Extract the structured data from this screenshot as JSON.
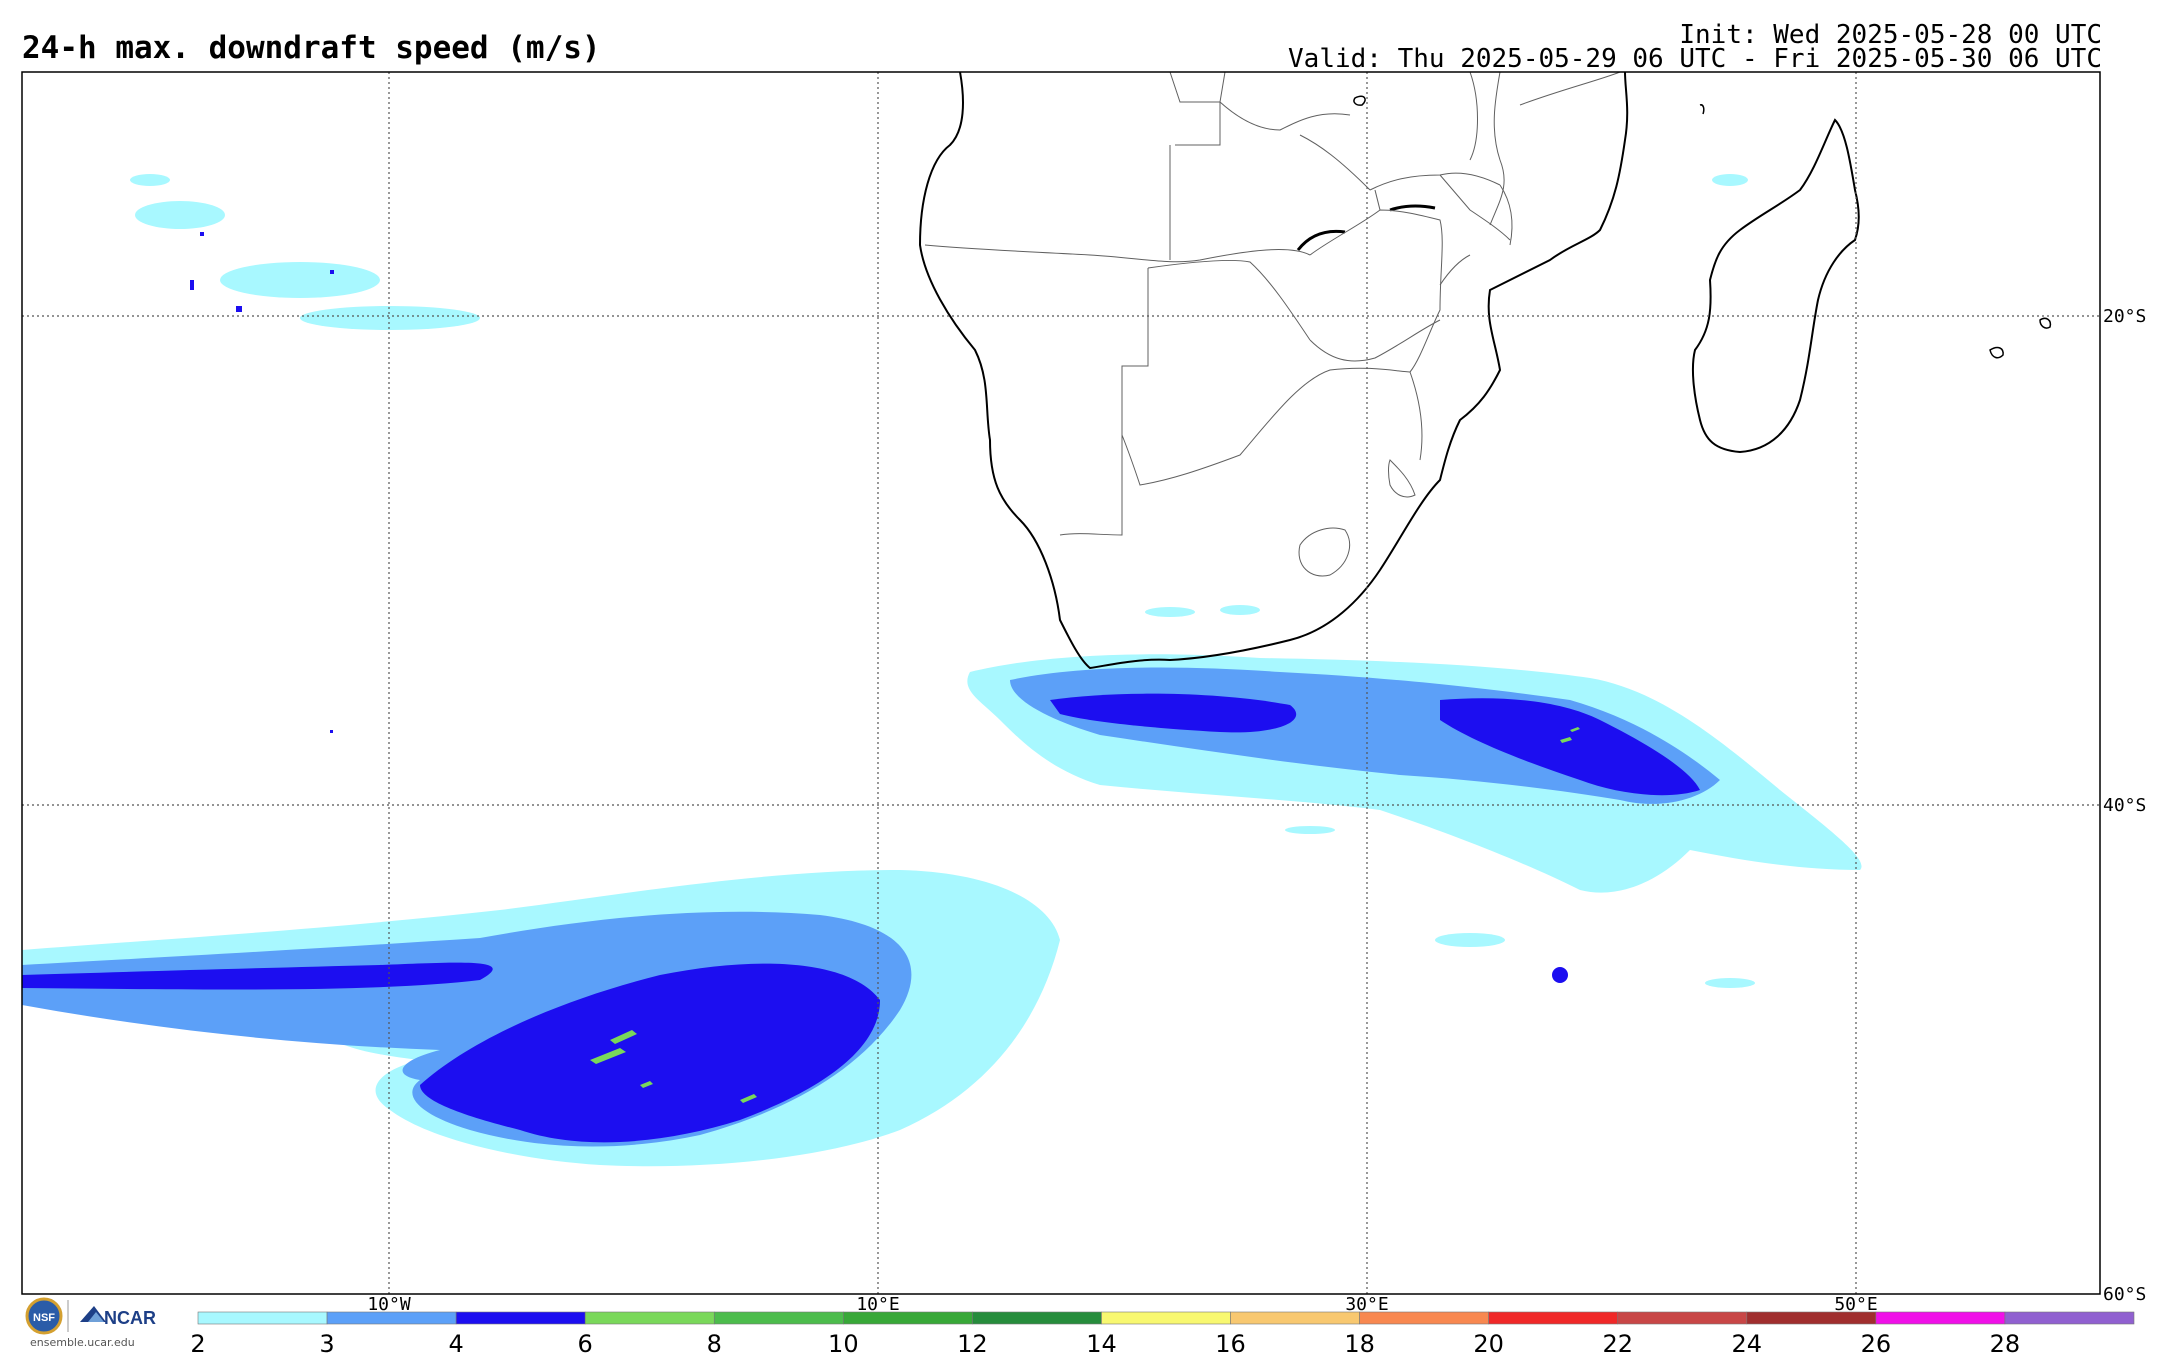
{
  "header": {
    "title": "24-h max. downdraft speed (m/s)",
    "init": "Init: Wed 2025-05-28 00 UTC",
    "valid": "Valid: Thu 2025-05-29 06 UTC - Fri 2025-05-30 06 UTC"
  },
  "map": {
    "lat_labels": [
      "20°S",
      "40°S",
      "60°S"
    ],
    "lon_labels": [
      "10°W",
      "10°E",
      "30°E",
      "50°E"
    ],
    "lon_range": [
      -25,
      60
    ],
    "lat_range": [
      -10,
      -60
    ]
  },
  "colorbar": {
    "ticks": [
      "2",
      "3",
      "4",
      "6",
      "8",
      "10",
      "12",
      "14",
      "16",
      "18",
      "20",
      "22",
      "24",
      "26",
      "28"
    ],
    "colors": [
      "#a8f8ff",
      "#5ca0f8",
      "#1c0ef0",
      "#7ad85a",
      "#4cbc4c",
      "#38a838",
      "#268c3c",
      "#f8f870",
      "#f8c870",
      "#f88850",
      "#f02828",
      "#c84646",
      "#a02e2e",
      "#f010e8",
      "#9060d0"
    ]
  },
  "footer": {
    "logo_text": "NCAR",
    "site": "ensemble.ucar.edu"
  },
  "icons": {
    "nsf": "nsf-logo-icon",
    "ncar": "ncar-logo-icon"
  }
}
